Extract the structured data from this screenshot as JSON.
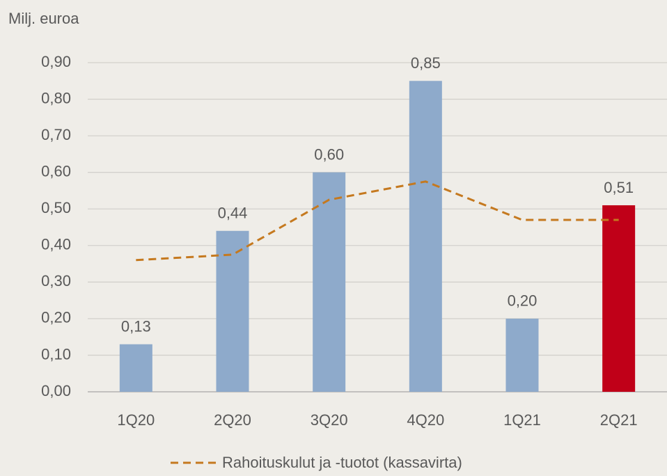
{
  "chart_data": {
    "type": "bar",
    "y_label": "Milj. euroa",
    "categories": [
      "1Q20",
      "2Q20",
      "3Q20",
      "4Q20",
      "1Q21",
      "2Q21"
    ],
    "series": [
      {
        "type": "bar",
        "values": [
          0.13,
          0.44,
          0.6,
          0.85,
          0.2,
          0.51
        ],
        "value_labels": [
          "0,13",
          "0,44",
          "0,60",
          "0,85",
          "0,20",
          "0,51"
        ],
        "colors": [
          "#8eaacb",
          "#8eaacb",
          "#8eaacb",
          "#8eaacb",
          "#8eaacb",
          "#c00018"
        ]
      },
      {
        "type": "line",
        "name": "Rahoituskulut ja -tuotot (kassavirta)",
        "color": "#c5791f",
        "dashed": true,
        "values": [
          0.36,
          0.375,
          0.525,
          0.575,
          0.47,
          0.47
        ]
      }
    ],
    "ylim": [
      0,
      0.9
    ],
    "yticks": [
      {
        "value": 0,
        "label": "0,00"
      },
      {
        "value": 0.1,
        "label": "0,10"
      },
      {
        "value": 0.2,
        "label": "0,20"
      },
      {
        "value": 0.3,
        "label": "0,30"
      },
      {
        "value": 0.4,
        "label": "0,40"
      },
      {
        "value": 0.5,
        "label": "0,50"
      },
      {
        "value": 0.6,
        "label": "0,60"
      },
      {
        "value": 0.7,
        "label": "0,70"
      },
      {
        "value": 0.8,
        "label": "0,80"
      },
      {
        "value": 0.9,
        "label": "0,90"
      }
    ],
    "grid": true,
    "legend": "bottom"
  }
}
